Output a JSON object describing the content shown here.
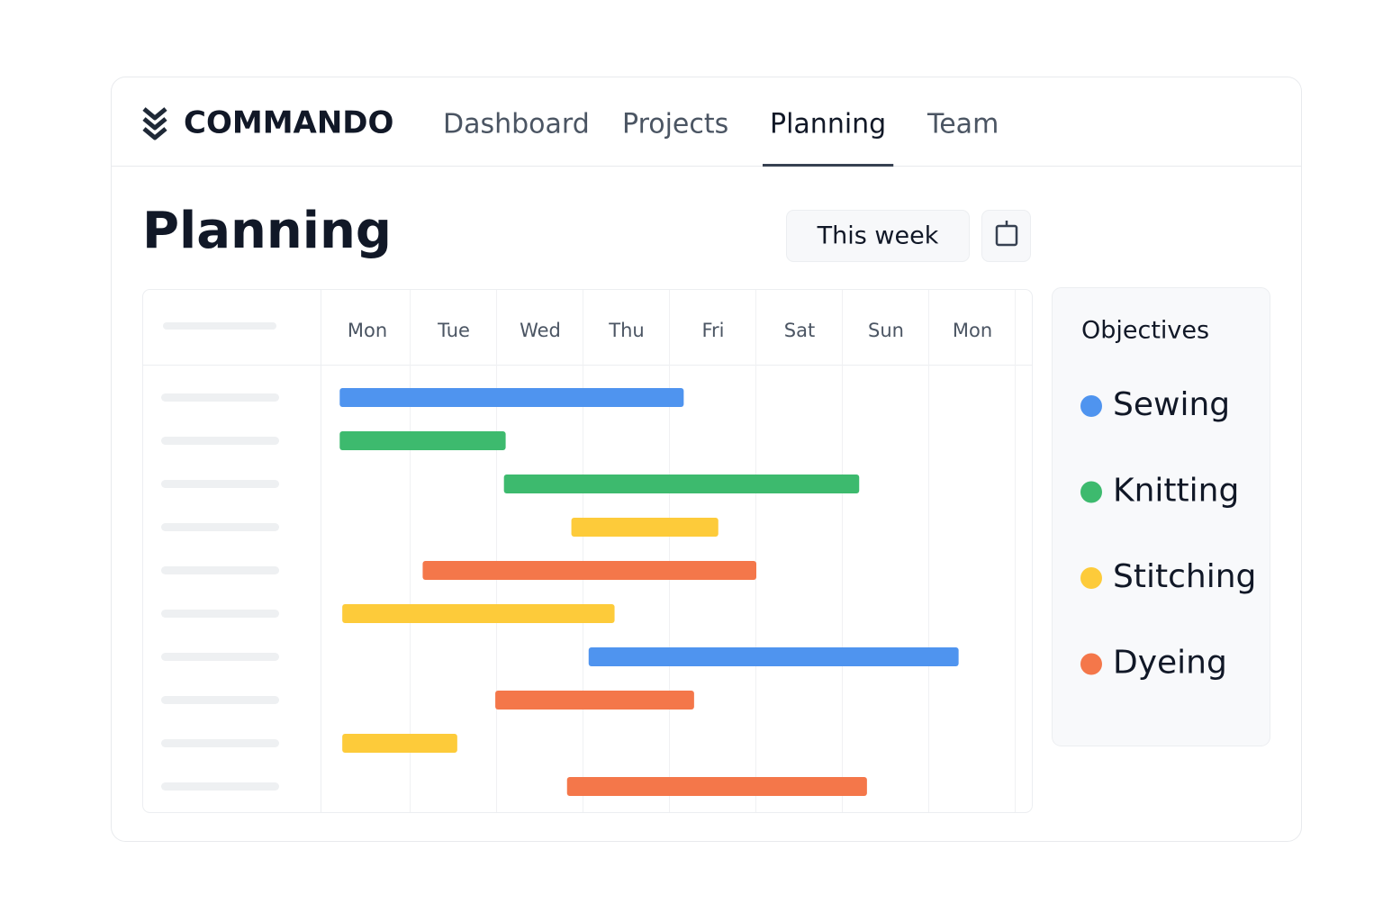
{
  "header": {
    "brand": "COMMANDO",
    "nav": [
      "Dashboard",
      "Projects",
      "Planning",
      "Team"
    ],
    "active_nav": 2
  },
  "page": {
    "title": "Planning",
    "range_button": "This week"
  },
  "gantt": {
    "days": [
      "Mon",
      "Tue",
      "Wed",
      "Thu",
      "Fri",
      "Sat",
      "Sun",
      "Mon"
    ],
    "xlim": [
      0,
      8
    ],
    "bars": [
      {
        "objective": 0,
        "start": 0.18,
        "end": 4.16
      },
      {
        "objective": 1,
        "start": 0.18,
        "end": 2.1
      },
      {
        "objective": 1,
        "start": 2.08,
        "end": 6.19
      },
      {
        "objective": 2,
        "start": 2.86,
        "end": 4.56
      },
      {
        "objective": 3,
        "start": 1.14,
        "end": 5.0
      },
      {
        "objective": 2,
        "start": 0.21,
        "end": 3.36
      },
      {
        "objective": 0,
        "start": 3.06,
        "end": 7.34
      },
      {
        "objective": 3,
        "start": 1.98,
        "end": 4.28
      },
      {
        "objective": 2,
        "start": 0.21,
        "end": 1.54
      },
      {
        "objective": 3,
        "start": 2.81,
        "end": 6.28
      }
    ]
  },
  "objectives": {
    "title": "Objectives",
    "items": [
      {
        "name": "Sewing",
        "color": "#4f94ef"
      },
      {
        "name": "Knitting",
        "color": "#3dba6e"
      },
      {
        "name": "Stitching",
        "color": "#fdcb3a"
      },
      {
        "name": "Dyeing",
        "color": "#f4774a"
      }
    ]
  }
}
